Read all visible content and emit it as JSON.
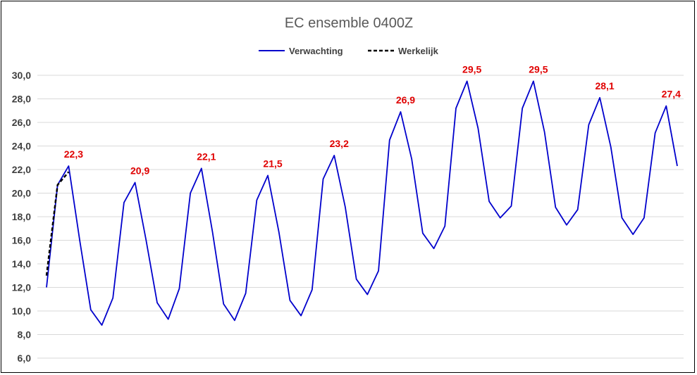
{
  "chart_data": {
    "type": "line",
    "title": "EC ensemble 0400Z",
    "xlabel": "",
    "ylabel": "",
    "ylim": [
      6,
      30
    ],
    "y_ticks": [
      "6,0",
      "8,0",
      "10,0",
      "12,0",
      "14,0",
      "16,0",
      "18,0",
      "20,0",
      "22,0",
      "24,0",
      "26,0",
      "28,0",
      "30,0"
    ],
    "grid": "horizontal",
    "legend_position": "top-center",
    "series": [
      {
        "name": "Verwachting",
        "color": "#0000cc",
        "style": "solid",
        "x": [
          0,
          1,
          2,
          3,
          4,
          5,
          6,
          7,
          8,
          9,
          10,
          11,
          12,
          13,
          14,
          15,
          16,
          17,
          18,
          19,
          20,
          21,
          22,
          23,
          24,
          25,
          26,
          27,
          28,
          29,
          30,
          31,
          32,
          33,
          34,
          35,
          36,
          37,
          38,
          39,
          40,
          41,
          42,
          43,
          44,
          45,
          46,
          47,
          48,
          49,
          50,
          51,
          52,
          53,
          54,
          55,
          56,
          57
        ],
        "values": [
          12.0,
          20.7,
          22.3,
          16.0,
          10.1,
          8.8,
          11.1,
          19.2,
          20.9,
          16.0,
          10.7,
          9.3,
          11.9,
          20.0,
          22.1,
          16.7,
          10.6,
          9.2,
          11.5,
          19.4,
          21.5,
          16.7,
          10.9,
          9.6,
          11.8,
          21.2,
          23.2,
          18.8,
          12.7,
          11.4,
          13.4,
          24.5,
          26.9,
          22.9,
          16.6,
          15.3,
          17.2,
          27.2,
          29.5,
          25.5,
          19.3,
          17.9,
          18.9,
          27.2,
          29.5,
          25.2,
          18.8,
          17.3,
          18.6,
          25.8,
          28.1,
          23.9,
          17.9,
          16.5,
          17.9,
          25.1,
          27.4,
          22.3
        ]
      },
      {
        "name": "Werkelijk",
        "color": "#000000",
        "style": "dashed",
        "x": [
          0,
          1,
          2
        ],
        "values": [
          13.0,
          20.7,
          21.8
        ]
      }
    ],
    "annotations": [
      {
        "x": 2,
        "value": 22.3,
        "text": "22,3"
      },
      {
        "x": 8,
        "value": 20.9,
        "text": "20,9"
      },
      {
        "x": 14,
        "value": 22.1,
        "text": "22,1"
      },
      {
        "x": 20,
        "value": 21.5,
        "text": "21,5"
      },
      {
        "x": 26,
        "value": 23.2,
        "text": "23,2"
      },
      {
        "x": 32,
        "value": 26.9,
        "text": "26,9"
      },
      {
        "x": 38,
        "value": 29.5,
        "text": "29,5"
      },
      {
        "x": 44,
        "value": 29.5,
        "text": "29,5"
      },
      {
        "x": 50,
        "value": 28.1,
        "text": "28,1"
      },
      {
        "x": 56,
        "value": 27.4,
        "text": "27,4"
      }
    ],
    "annotation_color": "#e00000"
  }
}
